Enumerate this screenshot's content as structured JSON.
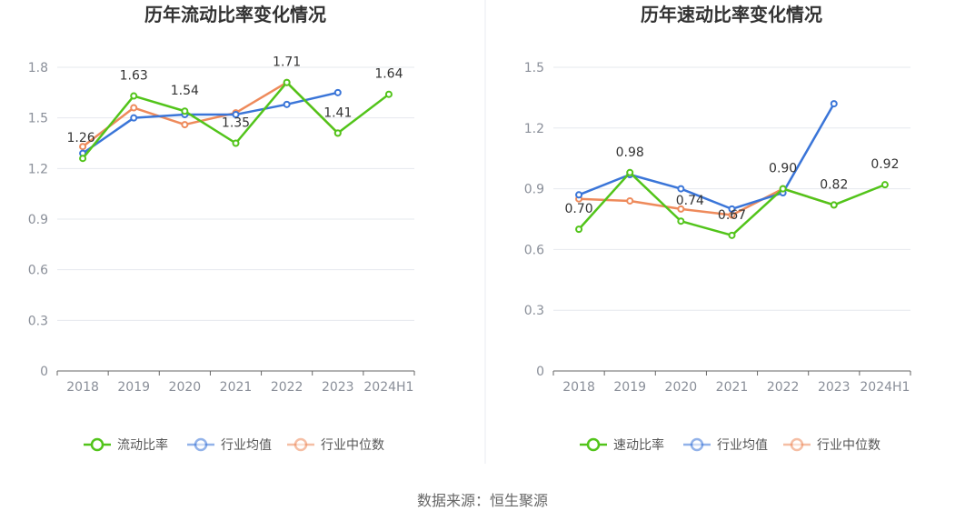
{
  "source": "数据来源：恒生聚源",
  "chart_data": [
    {
      "type": "line",
      "title": "历年流动比率变化情况",
      "categories": [
        "2018",
        "2019",
        "2020",
        "2021",
        "2022",
        "2023",
        "2024H1"
      ],
      "ylim": [
        0,
        1.8
      ],
      "yticks": [
        "0",
        "0.3",
        "0.6",
        "0.9",
        "1.2",
        "1.5",
        "1.8"
      ],
      "grid": true,
      "legend_position": "bottom",
      "series": [
        {
          "name": "流动比率",
          "color": "#52c41a",
          "labeled": true,
          "values": [
            1.26,
            1.63,
            1.54,
            1.35,
            1.71,
            1.41,
            1.64
          ],
          "labels": [
            "1.26",
            "1.63",
            "1.54",
            "1.35",
            "1.71",
            "1.41",
            "1.64"
          ]
        },
        {
          "name": "行业均值",
          "color": "#3a75d8",
          "labeled": false,
          "values": [
            1.29,
            1.5,
            1.52,
            1.52,
            1.58,
            1.65,
            null
          ]
        },
        {
          "name": "行业中位数",
          "color": "#ee8a5b",
          "labeled": false,
          "values": [
            1.33,
            1.56,
            1.46,
            1.53,
            1.71,
            1.41,
            null
          ]
        }
      ]
    },
    {
      "type": "line",
      "title": "历年速动比率变化情况",
      "categories": [
        "2018",
        "2019",
        "2020",
        "2021",
        "2022",
        "2023",
        "2024H1"
      ],
      "ylim": [
        0,
        1.5
      ],
      "yticks": [
        "0",
        "0.3",
        "0.6",
        "0.9",
        "1.2",
        "1.5"
      ],
      "grid": true,
      "legend_position": "bottom",
      "series": [
        {
          "name": "速动比率",
          "color": "#52c41a",
          "labeled": true,
          "values": [
            0.7,
            0.98,
            0.74,
            0.67,
            0.9,
            0.82,
            0.92
          ],
          "labels": [
            "0.70",
            "0.98",
            "0.74",
            "0.67",
            "0.90",
            "0.82",
            "0.92"
          ]
        },
        {
          "name": "行业均值",
          "color": "#3a75d8",
          "labeled": false,
          "values": [
            0.87,
            0.97,
            0.9,
            0.8,
            0.88,
            1.32,
            null
          ]
        },
        {
          "name": "行业中位数",
          "color": "#ee8a5b",
          "labeled": false,
          "values": [
            0.85,
            0.84,
            0.8,
            0.77,
            0.9,
            0.82,
            null
          ]
        }
      ]
    }
  ]
}
